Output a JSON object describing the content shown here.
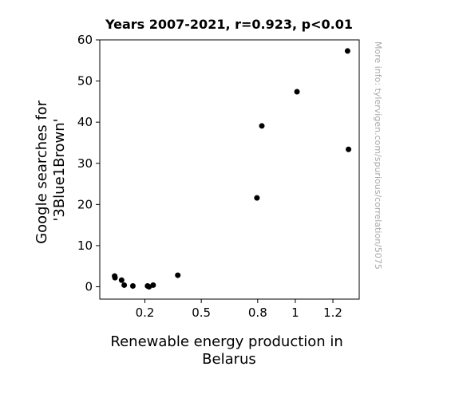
{
  "chart_data": {
    "type": "scatter",
    "title": "Years 2007-2021, r=0.923, p<0.01",
    "xlabel": "Renewable energy production in Belarus",
    "xlabel_lines": [
      "Renewable energy production in",
      "Belarus"
    ],
    "ylabel": "Google searches for '3Blue1Brown'",
    "ylabel_lines": [
      "Google searches for",
      "'3Blue1Brown'"
    ],
    "side_note": "More info: tylervigen.com/spurious/correlation/5075",
    "xlim": [
      -0.04,
      1.34
    ],
    "ylim": [
      -3,
      60
    ],
    "x_ticks": [
      0.2,
      0.5,
      0.8,
      1,
      1.2
    ],
    "x_tick_labels": [
      "0.2",
      "0.5",
      "0.8",
      "1",
      "1.2"
    ],
    "y_ticks": [
      0,
      10,
      20,
      30,
      40,
      50,
      60
    ],
    "y_tick_labels": [
      "0",
      "10",
      "20",
      "30",
      "40",
      "50",
      "60"
    ],
    "grid": false,
    "point_color": "#000000",
    "points": [
      {
        "x": 0.039,
        "y": 2.6
      },
      {
        "x": 0.041,
        "y": 2.2
      },
      {
        "x": 0.076,
        "y": 1.6
      },
      {
        "x": 0.09,
        "y": 0.4
      },
      {
        "x": 0.136,
        "y": 0.2
      },
      {
        "x": 0.214,
        "y": 0.2
      },
      {
        "x": 0.222,
        "y": 0.0
      },
      {
        "x": 0.244,
        "y": 0.4
      },
      {
        "x": 0.375,
        "y": 2.8
      },
      {
        "x": 0.796,
        "y": 21.6
      },
      {
        "x": 0.822,
        "y": 39.1
      },
      {
        "x": 1.009,
        "y": 47.4
      },
      {
        "x": 1.278,
        "y": 57.3
      },
      {
        "x": 1.283,
        "y": 33.4
      }
    ]
  }
}
